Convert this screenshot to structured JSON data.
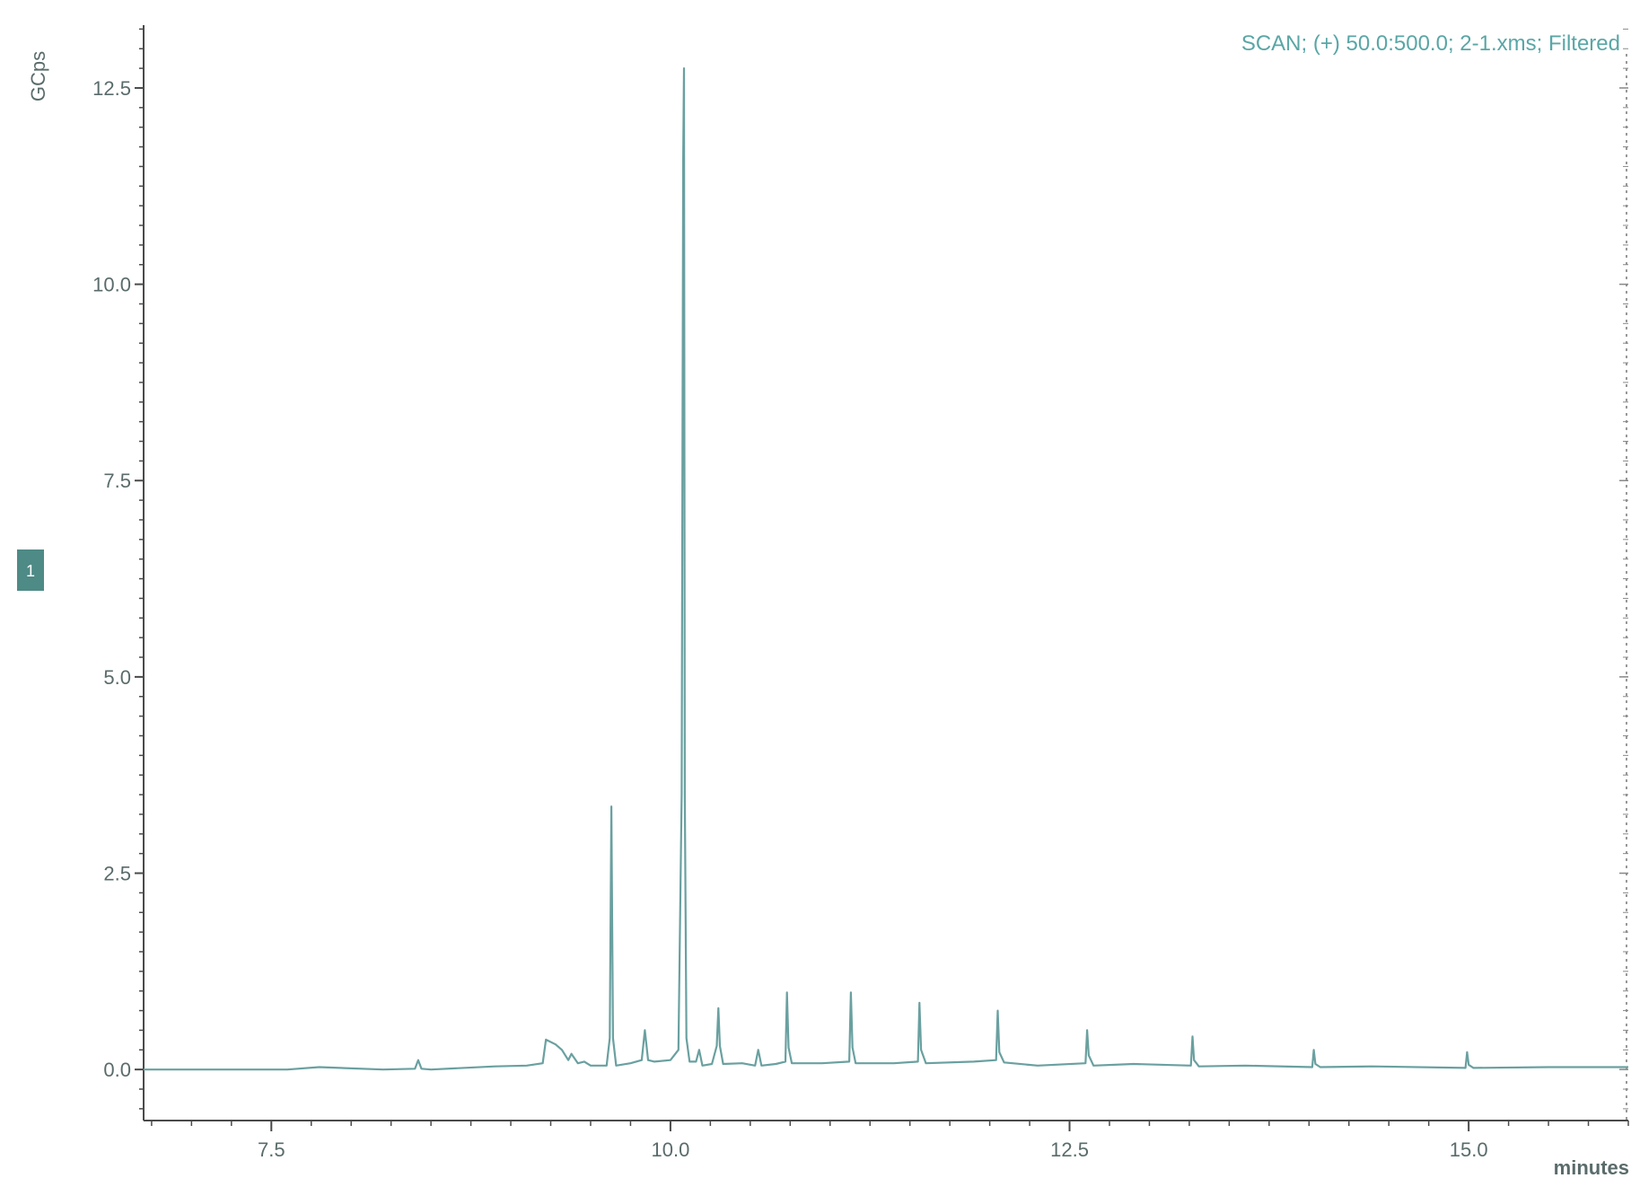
{
  "chart_data": {
    "type": "line",
    "title": "",
    "header": "SCAN;  (+) 50.0:500.0;  2-1.xms;  Filtered",
    "ylabel": "GCps",
    "xlabel": "minutes",
    "trace_marker": "1",
    "xlim": [
      6.7,
      16.0
    ],
    "ylim": [
      -0.65,
      13.3
    ],
    "xticks": [
      7.5,
      10.0,
      12.5,
      15.0
    ],
    "xtick_labels": [
      "7.5",
      "10.0",
      "12.5",
      "15.0"
    ],
    "yticks": [
      0.0,
      2.5,
      5.0,
      7.5,
      10.0,
      12.5
    ],
    "ytick_labels": [
      "0.0",
      "2.5",
      "5.0",
      "7.5",
      "10.0",
      "12.5"
    ],
    "grid": false,
    "line_color": "#6aa0a0",
    "series": [
      {
        "x": [
          6.7,
          7.6,
          7.8,
          8.2,
          8.4,
          8.42,
          8.44,
          8.5,
          8.9,
          9.1,
          9.2,
          9.22,
          9.28,
          9.32,
          9.36,
          9.38,
          9.42,
          9.46,
          9.5,
          9.6,
          9.62,
          9.63,
          9.64,
          9.66,
          9.75,
          9.82,
          9.84,
          9.86,
          9.9,
          10.0,
          10.05,
          10.07,
          10.08,
          10.085,
          10.09,
          10.1,
          10.12,
          10.16,
          10.18,
          10.2,
          10.26,
          10.29,
          10.3,
          10.31,
          10.33,
          10.45,
          10.53,
          10.55,
          10.57,
          10.66,
          10.72,
          10.73,
          10.74,
          10.76,
          10.95,
          11.12,
          11.13,
          11.14,
          11.16,
          11.4,
          11.55,
          11.56,
          11.57,
          11.6,
          11.9,
          12.04,
          12.05,
          12.06,
          12.09,
          12.3,
          12.6,
          12.61,
          12.62,
          12.65,
          12.9,
          13.26,
          13.27,
          13.28,
          13.31,
          13.6,
          14.02,
          14.03,
          14.04,
          14.07,
          14.4,
          14.98,
          14.99,
          15.0,
          15.03,
          15.5,
          16.0
        ],
        "y": [
          0.0,
          0.0,
          0.03,
          0.0,
          0.01,
          0.12,
          0.01,
          0.0,
          0.04,
          0.05,
          0.08,
          0.38,
          0.32,
          0.25,
          0.12,
          0.2,
          0.08,
          0.1,
          0.05,
          0.05,
          0.4,
          3.35,
          0.4,
          0.05,
          0.08,
          0.12,
          0.5,
          0.12,
          0.1,
          0.12,
          0.25,
          3.5,
          11.6,
          12.75,
          3.5,
          0.4,
          0.1,
          0.1,
          0.25,
          0.05,
          0.07,
          0.3,
          0.78,
          0.3,
          0.07,
          0.08,
          0.05,
          0.25,
          0.05,
          0.07,
          0.1,
          0.98,
          0.28,
          0.08,
          0.08,
          0.1,
          0.98,
          0.28,
          0.08,
          0.08,
          0.1,
          0.85,
          0.25,
          0.08,
          0.1,
          0.12,
          0.75,
          0.22,
          0.09,
          0.05,
          0.08,
          0.5,
          0.18,
          0.05,
          0.07,
          0.05,
          0.42,
          0.12,
          0.04,
          0.05,
          0.03,
          0.25,
          0.07,
          0.03,
          0.04,
          0.02,
          0.22,
          0.06,
          0.02,
          0.03,
          0.03
        ]
      }
    ]
  }
}
